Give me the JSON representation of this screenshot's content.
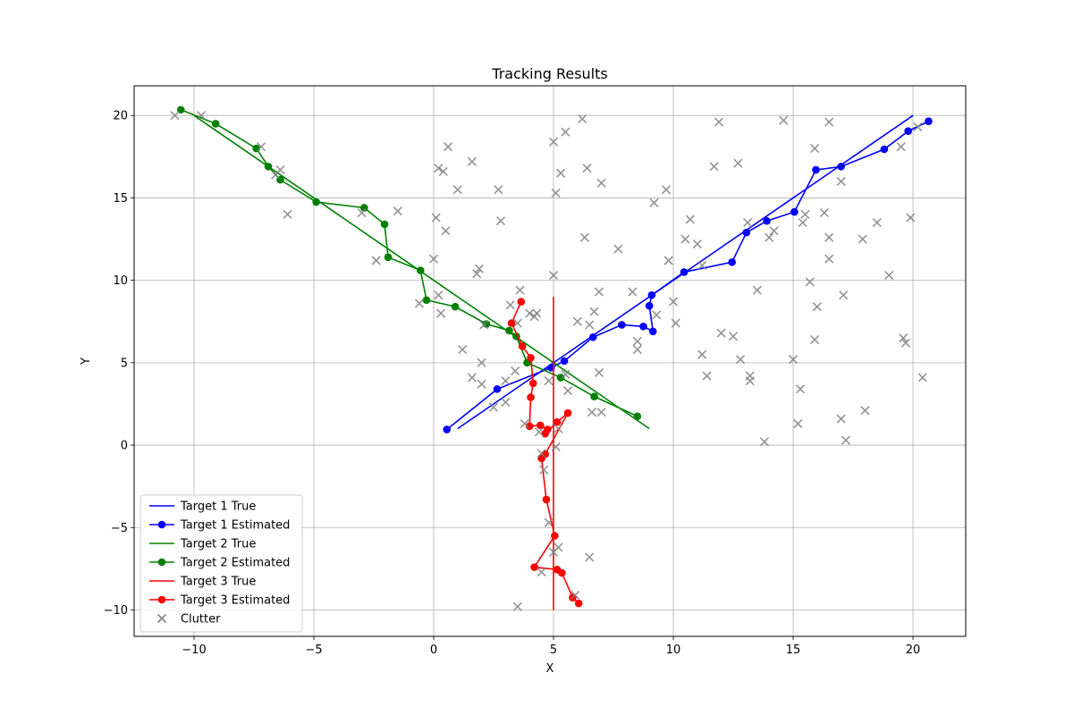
{
  "chart_data": {
    "type": "scatter",
    "title": "Tracking Results",
    "xlabel": "X",
    "ylabel": "Y",
    "xlim": [
      -12.5,
      22.2
    ],
    "ylim": [
      -11.6,
      21.8
    ],
    "xticks": [
      -10,
      -5,
      0,
      5,
      10,
      15,
      20
    ],
    "xtick_labels": [
      "−10",
      "−5",
      "0",
      "5",
      "10",
      "15",
      "20"
    ],
    "yticks": [
      -10,
      -5,
      0,
      5,
      10,
      15,
      20
    ],
    "ytick_labels": [
      "−10",
      "−5",
      "0",
      "5",
      "10",
      "15",
      "20"
    ],
    "grid": true,
    "legend_position": "lower-left",
    "series": [
      {
        "name": "Target 1 True",
        "kind": "line",
        "color": "#0000ff",
        "x": [
          1,
          20
        ],
        "y": [
          1,
          20
        ]
      },
      {
        "name": "Target 1 Estimated",
        "kind": "line-marker",
        "color": "#0000ff",
        "x": [
          0.55,
          2.65,
          4.9,
          5.45,
          6.65,
          7.85,
          8.75,
          9.15,
          9.0,
          9.1,
          10.45,
          12.45,
          13.05,
          13.9,
          15.05,
          15.95,
          17.0,
          18.8,
          19.8,
          20.65
        ],
        "y": [
          0.95,
          3.4,
          4.7,
          5.1,
          6.55,
          7.3,
          7.2,
          6.9,
          8.45,
          9.1,
          10.5,
          11.1,
          12.9,
          13.6,
          14.15,
          16.7,
          16.9,
          17.95,
          19.05,
          19.65
        ]
      },
      {
        "name": "Target 2 True",
        "kind": "line",
        "color": "#008000",
        "x": [
          -10,
          9
        ],
        "y": [
          20,
          1
        ]
      },
      {
        "name": "Target 2 Estimated",
        "kind": "line-marker",
        "color": "#008000",
        "x": [
          -10.55,
          -9.1,
          -7.4,
          -6.9,
          -6.4,
          -4.9,
          -2.9,
          -2.05,
          -1.9,
          -0.55,
          -0.3,
          0.9,
          2.2,
          3.15,
          3.45,
          3.9,
          5.3,
          6.7,
          8.5
        ],
        "y": [
          20.35,
          19.5,
          18.0,
          16.9,
          16.1,
          14.75,
          14.4,
          13.4,
          11.4,
          10.6,
          8.8,
          8.4,
          7.35,
          6.95,
          6.6,
          5.0,
          4.1,
          2.95,
          1.75
        ]
      },
      {
        "name": "Target 3 True",
        "kind": "line",
        "color": "#ff0000",
        "x": [
          5,
          5
        ],
        "y": [
          9,
          -10
        ]
      },
      {
        "name": "Target 3 Estimated",
        "kind": "line-marker",
        "color": "#ff0000",
        "x": [
          3.65,
          3.25,
          3.7,
          4.05,
          4.15,
          4.05,
          4.0,
          4.45,
          4.75,
          4.65,
          5.15,
          5.6,
          4.65,
          4.5,
          4.7,
          5.05,
          4.2,
          5.15,
          5.35,
          5.8,
          6.05
        ],
        "y": [
          8.7,
          7.4,
          6.0,
          5.3,
          3.75,
          2.9,
          1.15,
          1.2,
          0.95,
          0.7,
          1.4,
          1.95,
          -0.55,
          -0.8,
          -3.3,
          -5.5,
          -7.4,
          -7.55,
          -7.75,
          -9.25,
          -9.6
        ]
      },
      {
        "name": "Clutter",
        "kind": "scatter",
        "marker": "x",
        "color": "#808080",
        "x": [
          -10.8,
          -9.7,
          -7.2,
          -6.4,
          -6.6,
          -6.1,
          -3,
          -2.4,
          -1.5,
          -0.6,
          0,
          0.1,
          0.2,
          0.2,
          0.3,
          0.4,
          0.5,
          0.6,
          1,
          1.2,
          1.6,
          1.6,
          1.8,
          1.9,
          2.0,
          2.1,
          2.7,
          2.8,
          3.0,
          3.2,
          3.4,
          3.5,
          3.6,
          3.8,
          4.2,
          4.3,
          4.4,
          4.5,
          4.6,
          4.8,
          5,
          5,
          5.1,
          5.1,
          5.2,
          5.3,
          5.5,
          5.5,
          5.6,
          6.2,
          6.3,
          6.4,
          6.5,
          6.6,
          6.7,
          6.9,
          6.9,
          7.0,
          7.0,
          7.7,
          8.3,
          8.5,
          8.5,
          9.2,
          9.3,
          9.7,
          9.8,
          10.0,
          10.1,
          10.5,
          10.7,
          11.0,
          11.2,
          11.2,
          11.4,
          11.7,
          11.9,
          12.0,
          12.5,
          12.7,
          12.8,
          13.1,
          13.2,
          13.2,
          13.5,
          13.8,
          14.0,
          14.2,
          14.6,
          15.0,
          15.2,
          15.3,
          15.4,
          15.5,
          15.7,
          15.9,
          15.9,
          16.0,
          16.3,
          16.5,
          16.5,
          16.5,
          17.0,
          17.0,
          17.1,
          17.2,
          17.9,
          18.0,
          18.5,
          19.0,
          19.5,
          19.6,
          19.7,
          19.9,
          20.2,
          20.4,
          4.8,
          5.2,
          4.5,
          6.5,
          5.9,
          3.5,
          2.0,
          2.5,
          3.0,
          5.0,
          6.0,
          4.0
        ],
        "y": [
          20.0,
          20.0,
          18.1,
          16.7,
          16.4,
          14.0,
          14.1,
          11.2,
          14.2,
          8.6,
          11.3,
          13.8,
          16.8,
          9.1,
          8.0,
          16.6,
          13.0,
          18.1,
          15.5,
          5.8,
          17.2,
          4.1,
          10.4,
          10.7,
          3.7,
          7.3,
          15.5,
          13.6,
          3.9,
          8.5,
          4.5,
          7.4,
          9.4,
          1.3,
          7.8,
          8.0,
          0.8,
          -0.5,
          -1.5,
          3.9,
          18.4,
          10.3,
          15.3,
          -0.1,
          1.0,
          16.5,
          19.0,
          4.3,
          3.3,
          19.8,
          12.6,
          16.8,
          7.3,
          2.0,
          8.1,
          9.3,
          4.4,
          2.0,
          15.9,
          11.9,
          9.3,
          6.3,
          5.8,
          14.7,
          7.9,
          15.5,
          11.2,
          8.7,
          7.4,
          12.5,
          13.7,
          12.2,
          10.9,
          5.5,
          4.2,
          16.9,
          19.6,
          6.8,
          6.6,
          17.1,
          5.2,
          13.5,
          4.2,
          3.9,
          9.4,
          0.2,
          12.6,
          13.0,
          19.7,
          5.2,
          1.3,
          3.4,
          13.5,
          14.0,
          9.9,
          18.0,
          6.4,
          8.4,
          14.1,
          19.6,
          12.6,
          11.3,
          16.0,
          1.6,
          9.1,
          0.3,
          12.5,
          2.1,
          13.5,
          10.3,
          18.1,
          6.5,
          6.2,
          13.8,
          19.3,
          4.1,
          -4.7,
          -6.2,
          -7.7,
          -6.8,
          -9.1,
          -9.8,
          5.0,
          2.3,
          2.6,
          -6.5,
          7.5,
          8.0
        ]
      }
    ]
  }
}
